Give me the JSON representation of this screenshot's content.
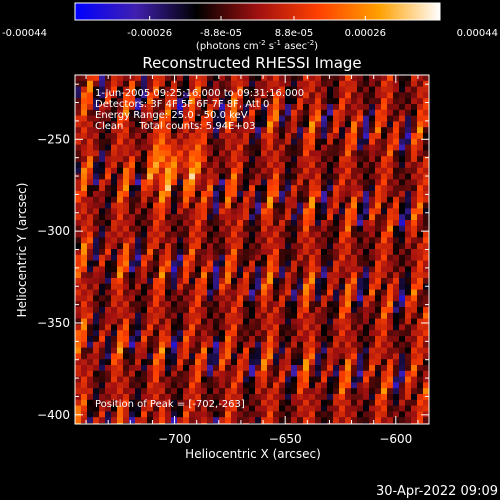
{
  "colorbar": {
    "tick_labels": [
      "-0.00044",
      "-0.00026",
      "-8.8e-05",
      "8.8e-05",
      "0.00026",
      "0.00044"
    ],
    "tick_values": [
      -0.00044,
      -0.00026,
      -8.8e-05,
      8.8e-05,
      0.00026,
      0.00044
    ],
    "range": [
      -0.00044,
      0.00044
    ],
    "units_prefix": "(photons cm",
    "units_exp1": "-2",
    "units_mid": " s",
    "units_exp2": "-1",
    "units_mid2": " asec",
    "units_exp3": "-2",
    "units_suffix": ")",
    "colors": [
      "#0000ff",
      "#4020b0",
      "#000000",
      "#a01010",
      "#ff4000",
      "#ffa000",
      "#ffffff"
    ]
  },
  "chart_data": {
    "type": "heatmap",
    "title": "Reconstructed RHESSI Image",
    "xlabel": "Heliocentric X (arcsec)",
    "ylabel": "Heliocentric Y (arcsec)",
    "xlim": [
      -745,
      -585
    ],
    "ylim": [
      -405,
      -215
    ],
    "x_ticks": [
      -700,
      -650,
      -600
    ],
    "x_tick_labels": [
      "−700",
      "−650",
      "−600"
    ],
    "y_ticks": [
      -250,
      -300,
      -350,
      -400
    ],
    "y_tick_labels": [
      "−250",
      "−300",
      "−350",
      "−400"
    ],
    "peak": [
      -702,
      -263
    ],
    "info": {
      "time_line": "1-Jun-2005 09:25:16.000 to 09:31:16.000",
      "detectors_line": "Detectors: 3F 4F 5F 6F 7F 8F, Att 0",
      "energy_line": "Energy Range: 25.0 - 50.0 keV",
      "clean_line": "Clean     Total counts: 5.94E+03"
    },
    "peak_label": "Position of Peak = [-702,-263]"
  },
  "footer": {
    "timestamp": "30-Apr-2022 09:09"
  }
}
